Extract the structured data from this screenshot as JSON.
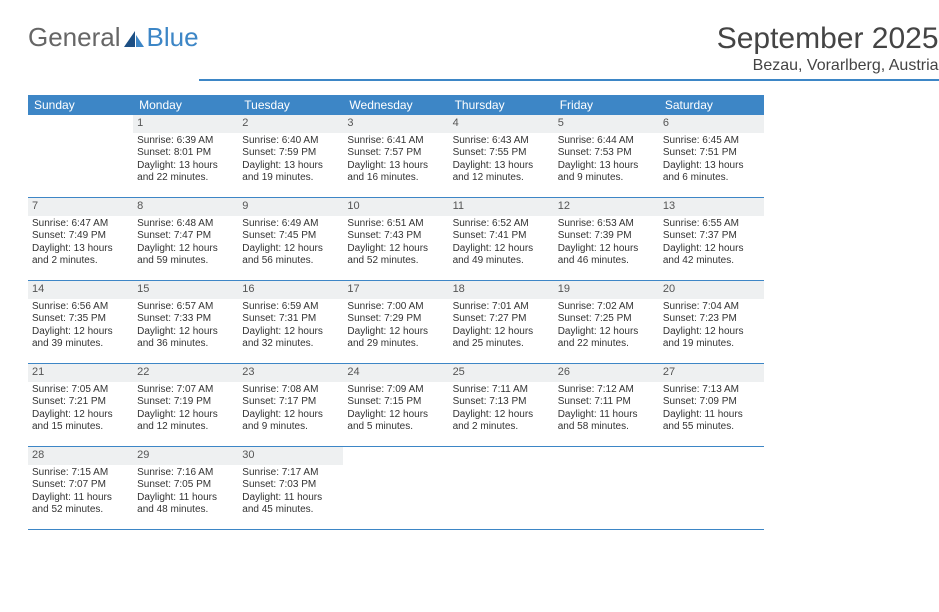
{
  "logo": {
    "part1": "General",
    "part2": "Blue"
  },
  "title": "September 2025",
  "location": "Bezau, Vorarlberg, Austria",
  "weekdays": [
    "Sunday",
    "Monday",
    "Tuesday",
    "Wednesday",
    "Thursday",
    "Friday",
    "Saturday"
  ],
  "leading_blanks": 1,
  "days": [
    {
      "n": "1",
      "sr": "Sunrise: 6:39 AM",
      "ss": "Sunset: 8:01 PM",
      "d1": "Daylight: 13 hours",
      "d2": "and 22 minutes."
    },
    {
      "n": "2",
      "sr": "Sunrise: 6:40 AM",
      "ss": "Sunset: 7:59 PM",
      "d1": "Daylight: 13 hours",
      "d2": "and 19 minutes."
    },
    {
      "n": "3",
      "sr": "Sunrise: 6:41 AM",
      "ss": "Sunset: 7:57 PM",
      "d1": "Daylight: 13 hours",
      "d2": "and 16 minutes."
    },
    {
      "n": "4",
      "sr": "Sunrise: 6:43 AM",
      "ss": "Sunset: 7:55 PM",
      "d1": "Daylight: 13 hours",
      "d2": "and 12 minutes."
    },
    {
      "n": "5",
      "sr": "Sunrise: 6:44 AM",
      "ss": "Sunset: 7:53 PM",
      "d1": "Daylight: 13 hours",
      "d2": "and 9 minutes."
    },
    {
      "n": "6",
      "sr": "Sunrise: 6:45 AM",
      "ss": "Sunset: 7:51 PM",
      "d1": "Daylight: 13 hours",
      "d2": "and 6 minutes."
    },
    {
      "n": "7",
      "sr": "Sunrise: 6:47 AM",
      "ss": "Sunset: 7:49 PM",
      "d1": "Daylight: 13 hours",
      "d2": "and 2 minutes."
    },
    {
      "n": "8",
      "sr": "Sunrise: 6:48 AM",
      "ss": "Sunset: 7:47 PM",
      "d1": "Daylight: 12 hours",
      "d2": "and 59 minutes."
    },
    {
      "n": "9",
      "sr": "Sunrise: 6:49 AM",
      "ss": "Sunset: 7:45 PM",
      "d1": "Daylight: 12 hours",
      "d2": "and 56 minutes."
    },
    {
      "n": "10",
      "sr": "Sunrise: 6:51 AM",
      "ss": "Sunset: 7:43 PM",
      "d1": "Daylight: 12 hours",
      "d2": "and 52 minutes."
    },
    {
      "n": "11",
      "sr": "Sunrise: 6:52 AM",
      "ss": "Sunset: 7:41 PM",
      "d1": "Daylight: 12 hours",
      "d2": "and 49 minutes."
    },
    {
      "n": "12",
      "sr": "Sunrise: 6:53 AM",
      "ss": "Sunset: 7:39 PM",
      "d1": "Daylight: 12 hours",
      "d2": "and 46 minutes."
    },
    {
      "n": "13",
      "sr": "Sunrise: 6:55 AM",
      "ss": "Sunset: 7:37 PM",
      "d1": "Daylight: 12 hours",
      "d2": "and 42 minutes."
    },
    {
      "n": "14",
      "sr": "Sunrise: 6:56 AM",
      "ss": "Sunset: 7:35 PM",
      "d1": "Daylight: 12 hours",
      "d2": "and 39 minutes."
    },
    {
      "n": "15",
      "sr": "Sunrise: 6:57 AM",
      "ss": "Sunset: 7:33 PM",
      "d1": "Daylight: 12 hours",
      "d2": "and 36 minutes."
    },
    {
      "n": "16",
      "sr": "Sunrise: 6:59 AM",
      "ss": "Sunset: 7:31 PM",
      "d1": "Daylight: 12 hours",
      "d2": "and 32 minutes."
    },
    {
      "n": "17",
      "sr": "Sunrise: 7:00 AM",
      "ss": "Sunset: 7:29 PM",
      "d1": "Daylight: 12 hours",
      "d2": "and 29 minutes."
    },
    {
      "n": "18",
      "sr": "Sunrise: 7:01 AM",
      "ss": "Sunset: 7:27 PM",
      "d1": "Daylight: 12 hours",
      "d2": "and 25 minutes."
    },
    {
      "n": "19",
      "sr": "Sunrise: 7:02 AM",
      "ss": "Sunset: 7:25 PM",
      "d1": "Daylight: 12 hours",
      "d2": "and 22 minutes."
    },
    {
      "n": "20",
      "sr": "Sunrise: 7:04 AM",
      "ss": "Sunset: 7:23 PM",
      "d1": "Daylight: 12 hours",
      "d2": "and 19 minutes."
    },
    {
      "n": "21",
      "sr": "Sunrise: 7:05 AM",
      "ss": "Sunset: 7:21 PM",
      "d1": "Daylight: 12 hours",
      "d2": "and 15 minutes."
    },
    {
      "n": "22",
      "sr": "Sunrise: 7:07 AM",
      "ss": "Sunset: 7:19 PM",
      "d1": "Daylight: 12 hours",
      "d2": "and 12 minutes."
    },
    {
      "n": "23",
      "sr": "Sunrise: 7:08 AM",
      "ss": "Sunset: 7:17 PM",
      "d1": "Daylight: 12 hours",
      "d2": "and 9 minutes."
    },
    {
      "n": "24",
      "sr": "Sunrise: 7:09 AM",
      "ss": "Sunset: 7:15 PM",
      "d1": "Daylight: 12 hours",
      "d2": "and 5 minutes."
    },
    {
      "n": "25",
      "sr": "Sunrise: 7:11 AM",
      "ss": "Sunset: 7:13 PM",
      "d1": "Daylight: 12 hours",
      "d2": "and 2 minutes."
    },
    {
      "n": "26",
      "sr": "Sunrise: 7:12 AM",
      "ss": "Sunset: 7:11 PM",
      "d1": "Daylight: 11 hours",
      "d2": "and 58 minutes."
    },
    {
      "n": "27",
      "sr": "Sunrise: 7:13 AM",
      "ss": "Sunset: 7:09 PM",
      "d1": "Daylight: 11 hours",
      "d2": "and 55 minutes."
    },
    {
      "n": "28",
      "sr": "Sunrise: 7:15 AM",
      "ss": "Sunset: 7:07 PM",
      "d1": "Daylight: 11 hours",
      "d2": "and 52 minutes."
    },
    {
      "n": "29",
      "sr": "Sunrise: 7:16 AM",
      "ss": "Sunset: 7:05 PM",
      "d1": "Daylight: 11 hours",
      "d2": "and 48 minutes."
    },
    {
      "n": "30",
      "sr": "Sunrise: 7:17 AM",
      "ss": "Sunset: 7:03 PM",
      "d1": "Daylight: 11 hours",
      "d2": "and 45 minutes."
    }
  ],
  "colors": {
    "accent": "#3d86c6",
    "daynum_bg": "#eef0f1",
    "text": "#333333"
  }
}
